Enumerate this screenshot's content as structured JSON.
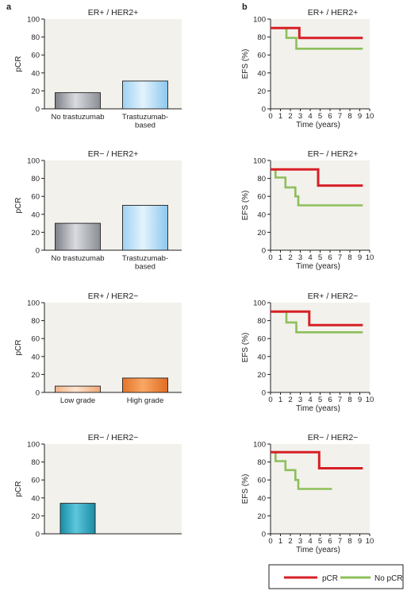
{
  "panel_labels": [
    "a",
    "b"
  ],
  "colors": {
    "pcr": "#d71f26",
    "no_pcr": "#8dbf5a",
    "plot_bg": "#f2f1ec",
    "axis": "#231f20"
  },
  "legend": {
    "pcr": "pCR",
    "no_pcr": "No pCR"
  },
  "chart_data": [
    {
      "type": "bar",
      "panel": "a",
      "title": "ER+ / HER2+",
      "ylabel": "pCR",
      "xlabel": "",
      "ylim": [
        0,
        100
      ],
      "yticks": [
        0,
        20,
        40,
        60,
        80,
        100
      ],
      "categories": [
        [
          "No trastuzumab"
        ],
        [
          "Trastuzumab-",
          "based"
        ]
      ],
      "values": [
        18,
        31
      ],
      "bar_style": [
        "gray",
        "blue"
      ]
    },
    {
      "type": "bar",
      "panel": "a",
      "title": "ER− / HER2+",
      "ylabel": "pCR",
      "xlabel": "",
      "ylim": [
        0,
        100
      ],
      "yticks": [
        0,
        20,
        40,
        60,
        80,
        100
      ],
      "categories": [
        [
          "No trastuzumab"
        ],
        [
          "Trastuzumab-",
          "based"
        ]
      ],
      "values": [
        30,
        50
      ],
      "bar_style": [
        "gray",
        "blue"
      ]
    },
    {
      "type": "bar",
      "panel": "a",
      "title": "ER+ / HER2−",
      "ylabel": "pCR",
      "xlabel": "",
      "ylim": [
        0,
        100
      ],
      "yticks": [
        0,
        20,
        40,
        60,
        80,
        100
      ],
      "categories": [
        [
          "Low grade"
        ],
        [
          "High grade"
        ]
      ],
      "values": [
        7,
        16
      ],
      "bar_style": [
        "peach",
        "orange"
      ]
    },
    {
      "type": "bar",
      "panel": "a",
      "title": "ER− / HER2−",
      "ylabel": "pCR",
      "xlabel": "",
      "ylim": [
        0,
        100
      ],
      "yticks": [
        0,
        20,
        40,
        60,
        80,
        100
      ],
      "categories": [
        [
          ""
        ]
      ],
      "values": [
        34
      ],
      "bar_style": [
        "teal"
      ]
    },
    {
      "type": "line",
      "panel": "b",
      "title": "ER+ / HER2+",
      "ylabel": "EFS (%)",
      "xlabel": "Time (years)",
      "xlim": [
        0,
        10
      ],
      "ylim": [
        0,
        100
      ],
      "xticks": [
        0,
        1,
        2,
        3,
        4,
        5,
        6,
        7,
        8,
        9,
        10
      ],
      "yticks": [
        0,
        20,
        40,
        60,
        80,
        100
      ],
      "series": [
        {
          "key": "pcr",
          "steps": [
            [
              0,
              90
            ],
            [
              2.9,
              90
            ],
            [
              2.9,
              79
            ],
            [
              9.3,
              79
            ]
          ]
        },
        {
          "key": "no_pcr",
          "steps": [
            [
              0,
              90
            ],
            [
              1.6,
              90
            ],
            [
              1.6,
              79
            ],
            [
              2.6,
              79
            ],
            [
              2.6,
              67
            ],
            [
              9.3,
              67
            ]
          ]
        }
      ]
    },
    {
      "type": "line",
      "panel": "b",
      "title": "ER− / HER2+",
      "ylabel": "EFS (%)",
      "xlabel": "Time (years)",
      "xlim": [
        0,
        10
      ],
      "ylim": [
        0,
        100
      ],
      "xticks": [
        0,
        1,
        2,
        3,
        4,
        5,
        6,
        7,
        8,
        9,
        10
      ],
      "yticks": [
        0,
        20,
        40,
        60,
        80,
        100
      ],
      "series": [
        {
          "key": "pcr",
          "steps": [
            [
              0,
              90
            ],
            [
              4.8,
              90
            ],
            [
              4.8,
              72
            ],
            [
              9.3,
              72
            ]
          ]
        },
        {
          "key": "no_pcr",
          "steps": [
            [
              0,
              90
            ],
            [
              0.5,
              90
            ],
            [
              0.5,
              81
            ],
            [
              1.5,
              81
            ],
            [
              1.5,
              70
            ],
            [
              2.5,
              70
            ],
            [
              2.5,
              60
            ],
            [
              2.8,
              60
            ],
            [
              2.8,
              50
            ],
            [
              9.3,
              50
            ]
          ]
        }
      ]
    },
    {
      "type": "line",
      "panel": "b",
      "title": "ER+ / HER2−",
      "ylabel": "EFS (%)",
      "xlabel": "Time (years)",
      "xlim": [
        0,
        10
      ],
      "ylim": [
        0,
        100
      ],
      "xticks": [
        0,
        1,
        2,
        3,
        4,
        5,
        6,
        7,
        8,
        9,
        10
      ],
      "yticks": [
        0,
        20,
        40,
        60,
        80,
        100
      ],
      "series": [
        {
          "key": "pcr",
          "steps": [
            [
              0,
              90
            ],
            [
              3.9,
              90
            ],
            [
              3.9,
              75
            ],
            [
              9.3,
              75
            ]
          ]
        },
        {
          "key": "no_pcr",
          "steps": [
            [
              0,
              90
            ],
            [
              1.6,
              90
            ],
            [
              1.6,
              78
            ],
            [
              2.6,
              78
            ],
            [
              2.6,
              67
            ],
            [
              9.3,
              67
            ]
          ]
        }
      ]
    },
    {
      "type": "line",
      "panel": "b",
      "title": "ER− / HER2−",
      "ylabel": "EFS (%)",
      "xlabel": "Time (years)",
      "xlim": [
        0,
        10
      ],
      "ylim": [
        0,
        100
      ],
      "xticks": [
        0,
        1,
        2,
        3,
        4,
        5,
        6,
        7,
        8,
        9,
        10
      ],
      "yticks": [
        0,
        20,
        40,
        60,
        80,
        100
      ],
      "series": [
        {
          "key": "pcr",
          "steps": [
            [
              0,
              91
            ],
            [
              4.9,
              91
            ],
            [
              4.9,
              73
            ],
            [
              9.3,
              73
            ]
          ]
        },
        {
          "key": "no_pcr",
          "steps": [
            [
              0,
              91
            ],
            [
              0.5,
              91
            ],
            [
              0.5,
              81
            ],
            [
              1.5,
              81
            ],
            [
              1.5,
              71
            ],
            [
              2.5,
              71
            ],
            [
              2.5,
              60
            ],
            [
              2.8,
              60
            ],
            [
              2.8,
              50
            ],
            [
              6.2,
              50
            ]
          ]
        }
      ]
    }
  ]
}
